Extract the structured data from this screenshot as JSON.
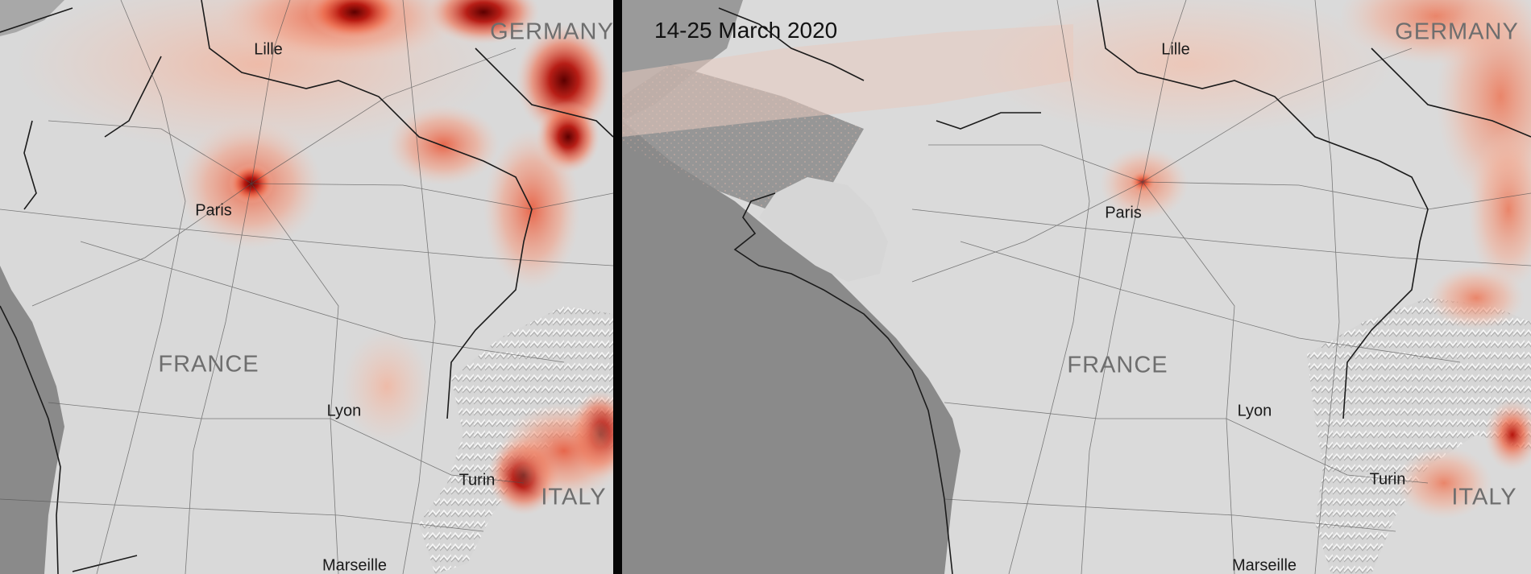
{
  "panels": {
    "left": {
      "countries": {
        "germany": "GERMANY",
        "france": "FRANCE",
        "italy": "ITALY"
      },
      "cities": {
        "lille": "Lille",
        "paris": "Paris",
        "lyon": "Lyon",
        "turin": "Turin",
        "marseille": "Marseille"
      }
    },
    "right": {
      "date": "14-25 March 2020",
      "countries": {
        "germany": "GERMANY",
        "france": "FRANCE",
        "italy": "ITALY"
      },
      "cities": {
        "lille": "Lille",
        "paris": "Paris",
        "lyon": "Lyon",
        "turin": "Turin",
        "marseille": "Marseille"
      }
    }
  },
  "colors": {
    "land_base": "#d9d9d9",
    "sea_base": "#8a8a8a",
    "pollution_low": "#f5c6b4",
    "pollution_mid": "#ef6a4a",
    "pollution_high": "#b5140c",
    "pollution_peak": "#5c0000",
    "divider": "#050505"
  }
}
